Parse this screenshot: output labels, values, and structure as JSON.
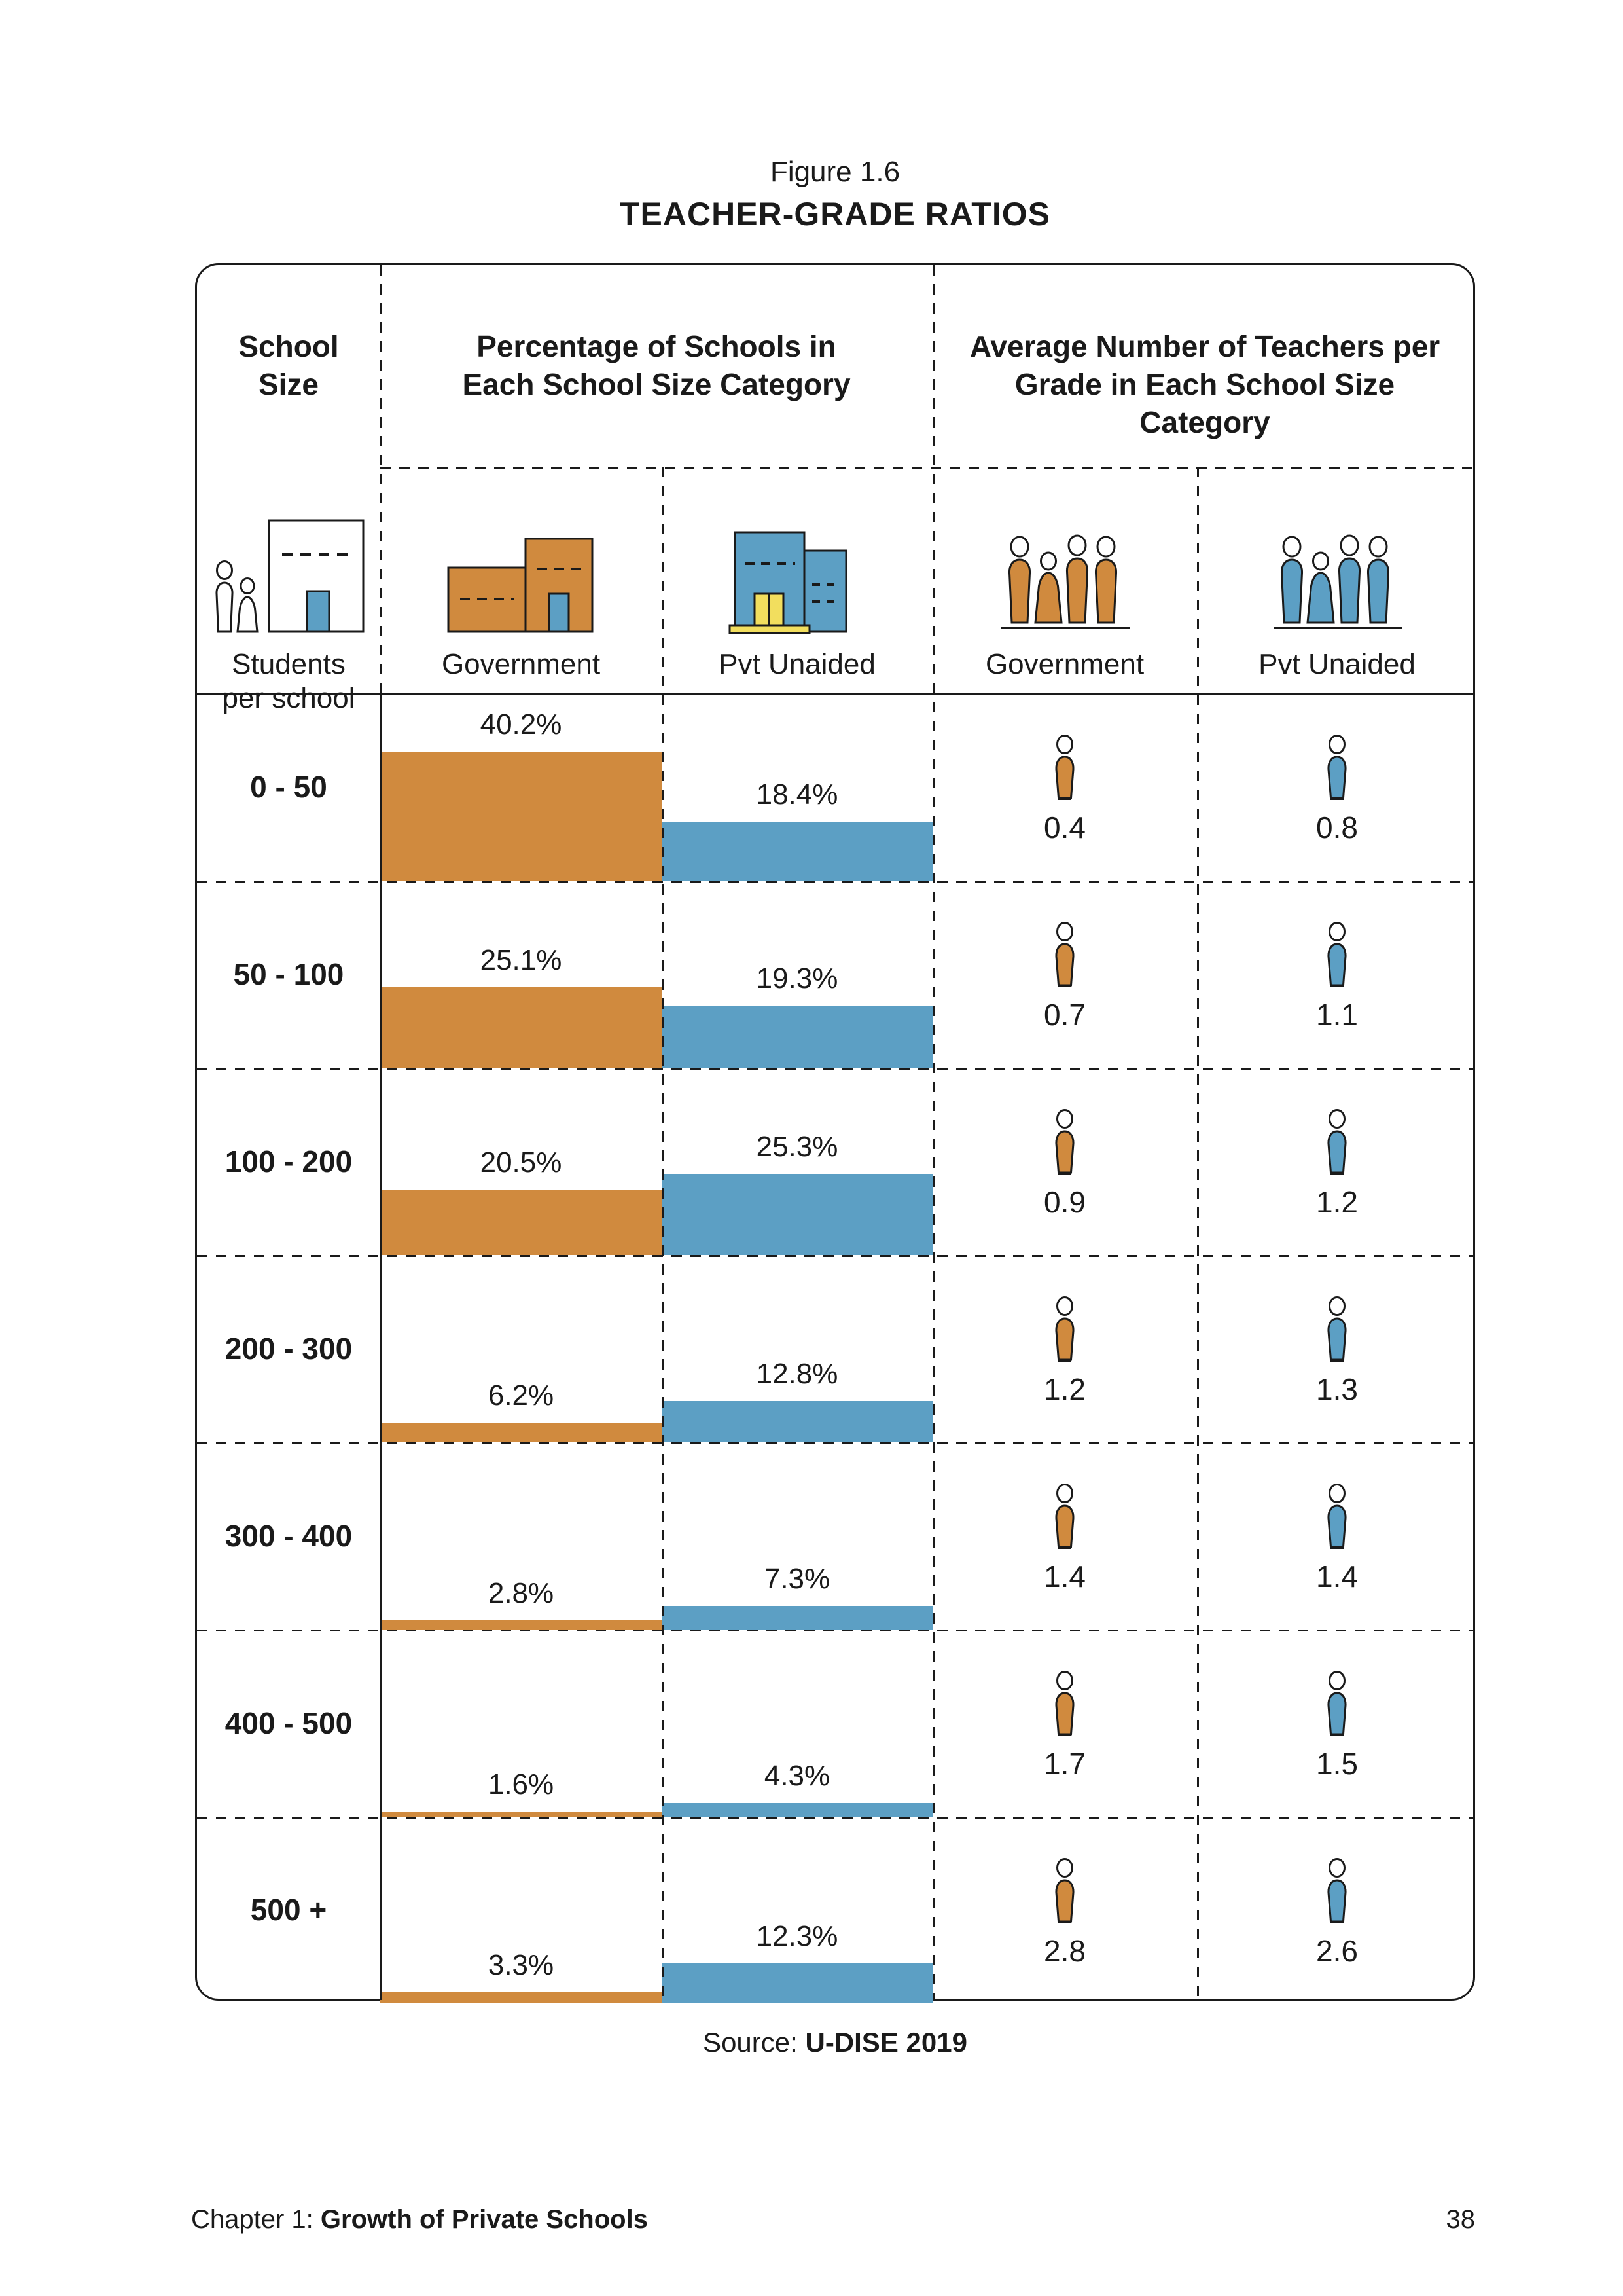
{
  "page": {
    "title_label": "Figure 1.6",
    "title": "TEACHER-GRADE RATIOS"
  },
  "table": {
    "school_size_header": "School Size",
    "pct_header": "Percentage of Schools in Each School Size Category",
    "avg_header": "Average Number of Teachers per Grade in Each School Size Category",
    "students_per_school_label": "Students per school",
    "pct_gov_label": "Government",
    "pct_pvt_label": "Pvt Unaided",
    "avg_gov_label": "Government",
    "avg_pvt_label": "Pvt Unaided"
  },
  "rows": [
    {
      "label": "0 - 50",
      "gov_pct": "40.2%",
      "pvt_pct": "18.4%",
      "gov_avg": "0.4",
      "pvt_avg": "0.8"
    },
    {
      "label": "50 - 100",
      "gov_pct": "25.1%",
      "pvt_pct": "19.3%",
      "gov_avg": "0.7",
      "pvt_avg": "1.1"
    },
    {
      "label": "100 - 200",
      "gov_pct": "20.5%",
      "pvt_pct": "25.3%",
      "gov_avg": "0.9",
      "pvt_avg": "1.2"
    },
    {
      "label": "200 - 300",
      "gov_pct": "6.2%",
      "pvt_pct": "12.8%",
      "gov_avg": "1.2",
      "pvt_avg": "1.3"
    },
    {
      "label": "300 - 400",
      "gov_pct": "2.8%",
      "pvt_pct": "7.3%",
      "gov_avg": "1.4",
      "pvt_avg": "1.4"
    },
    {
      "label": "400 - 500",
      "gov_pct": "1.6%",
      "pvt_pct": "4.3%",
      "gov_avg": "1.7",
      "pvt_avg": "1.5"
    },
    {
      "label": "500 +",
      "gov_pct": "3.3%",
      "pvt_pct": "12.3%",
      "gov_avg": "2.8",
      "pvt_avg": "2.6"
    }
  ],
  "chart_data": {
    "type": "bar",
    "categories": [
      "0 - 50",
      "50 - 100",
      "100 - 200",
      "200 - 300",
      "300 - 400",
      "400 - 500",
      "500 +"
    ],
    "series": [
      {
        "name": "Government share of schools (%)",
        "values": [
          40.2,
          25.1,
          20.5,
          6.2,
          2.8,
          1.6,
          3.3
        ]
      },
      {
        "name": "Pvt Unaided share of schools (%)",
        "values": [
          18.4,
          19.3,
          25.3,
          12.8,
          7.3,
          4.3,
          12.3
        ]
      },
      {
        "name": "Government avg teachers per grade",
        "values": [
          0.4,
          0.7,
          0.9,
          1.2,
          1.4,
          1.7,
          2.8
        ]
      },
      {
        "name": "Pvt Unaided avg teachers per grade",
        "values": [
          0.8,
          1.1,
          1.2,
          1.3,
          1.4,
          1.5,
          2.6
        ]
      }
    ],
    "title": "TEACHER-GRADE RATIOS",
    "xlabel": "School Size (students per school)",
    "ylabel": "Percentage of schools in category / average teachers per grade",
    "legend_position": "column headers",
    "grid": "dashed table grid"
  },
  "source": {
    "prefix": "Source: ",
    "name": "U-DISE 2019"
  },
  "footer": {
    "chapter_prefix": "Chapter 1: ",
    "chapter_title": "Growth of Private Schools",
    "page_number": "38"
  },
  "colors": {
    "government": "#D08A3E",
    "pvt_unaided": "#5C9FC4",
    "accent_yellow": "#F2DE5E",
    "ink": "#1A1A1A"
  }
}
